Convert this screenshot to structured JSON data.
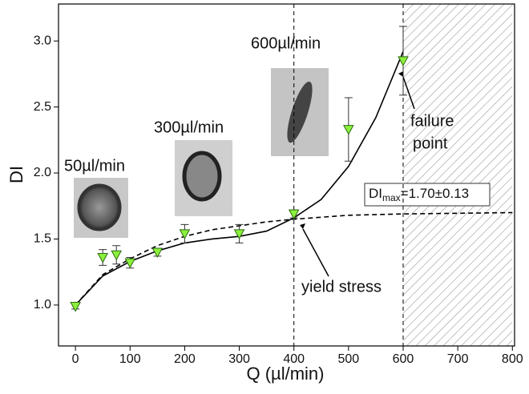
{
  "chart_data": {
    "type": "scatter",
    "xlabel": "Q (µl/min)",
    "ylabel": "DI",
    "xlim": [
      -31,
      804
    ],
    "ylim": [
      0.69,
      3.28
    ],
    "xticks": [
      0,
      100,
      200,
      300,
      400,
      500,
      600,
      700,
      800
    ],
    "yticks": [
      {
        "value": 1.0,
        "label": "1.0"
      },
      {
        "value": 1.5,
        "label": "1.5"
      },
      {
        "value": 2.0,
        "label": "2.0"
      },
      {
        "value": 2.5,
        "label": "2.5"
      },
      {
        "value": 3.0,
        "label": "3.0"
      }
    ],
    "points": {
      "color": "#8cf03c",
      "x": [
        0,
        50,
        75,
        100,
        150,
        200,
        300,
        400,
        500,
        600
      ],
      "values": [
        0.99,
        1.36,
        1.38,
        1.32,
        1.4,
        1.54,
        1.54,
        1.69,
        2.33,
        2.85
      ],
      "errors": [
        0.02,
        0.06,
        0.07,
        0.04,
        0.03,
        0.07,
        0.07,
        0.03,
        0.24,
        0.26
      ]
    },
    "curves": [
      {
        "dash": false,
        "x": [
          0,
          50,
          100,
          150,
          200,
          250,
          300,
          350,
          400,
          450,
          500,
          550,
          600
        ],
        "values": [
          1.0,
          1.22,
          1.33,
          1.41,
          1.47,
          1.5,
          1.52,
          1.56,
          1.66,
          1.8,
          2.05,
          2.42,
          2.92
        ]
      },
      {
        "dash": true,
        "x": [
          0,
          50,
          100,
          150,
          200,
          250,
          300,
          350,
          400,
          500,
          600,
          700,
          800
        ],
        "values": [
          1.0,
          1.23,
          1.35,
          1.45,
          1.52,
          1.57,
          1.6,
          1.63,
          1.65,
          1.68,
          1.69,
          1.695,
          1.7
        ]
      }
    ],
    "vlines": [
      400,
      600
    ],
    "failure_region": [
      600,
      800
    ],
    "annotations": {
      "rate_50": "50µl/min",
      "rate_300": "300µl/min",
      "rate_600": "600µl/min",
      "failure": [
        "failure",
        "point"
      ],
      "yield": "yield stress",
      "dimax": {
        "base": "DI",
        "sub": "max",
        "rest": "=1.70±0.13"
      }
    }
  }
}
